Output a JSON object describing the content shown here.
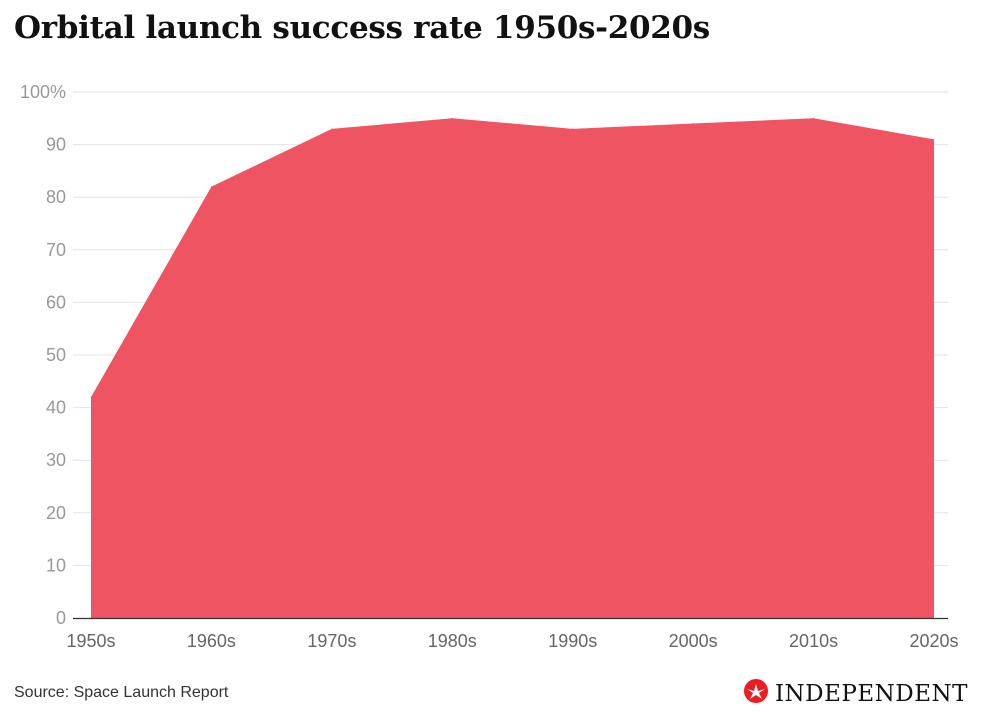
{
  "title": "Orbital launch success rate 1950s-2020s",
  "source": "Source: Space Launch Report",
  "brand": {
    "name": "INDEPENDENT",
    "icon": "eagle-icon",
    "color": "#ed1c24"
  },
  "colors": {
    "area": "#ee5462",
    "grid": "#e3e3e3",
    "axis": "#333333"
  },
  "chart_data": {
    "type": "area",
    "title": "Orbital launch success rate 1950s-2020s",
    "xlabel": "",
    "ylabel": "",
    "categories": [
      "1950s",
      "1960s",
      "1970s",
      "1980s",
      "1990s",
      "2000s",
      "2010s",
      "2020s"
    ],
    "values": [
      42,
      82,
      93,
      95,
      93,
      94,
      95,
      91
    ],
    "ylim": [
      0,
      100
    ],
    "yticks": [
      0,
      10,
      20,
      30,
      40,
      50,
      60,
      70,
      80,
      90,
      100
    ],
    "ytick_labels": [
      "0",
      "10",
      "20",
      "30",
      "40",
      "50",
      "60",
      "70",
      "80",
      "90",
      "100%"
    ],
    "grid": true,
    "legend": "none"
  }
}
